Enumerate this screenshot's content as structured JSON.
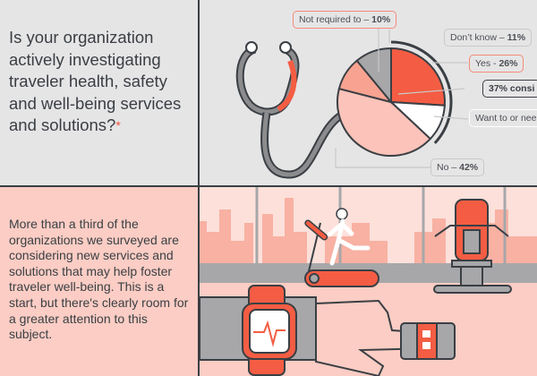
{
  "question": {
    "text": "Is your organization actively investigating traveler health, safety and well-being services and solutions?",
    "asterisk": "*"
  },
  "body_text": "More than a third of the organizations we surveyed are considering new services and solutions that may help foster traveler well-being. This is a start, but there's clearly room for a greater attention to this subject.",
  "chart_data": {
    "type": "pie",
    "title": "Is your organization actively investigating traveler health, safety and well-being services and solutions?",
    "slices": [
      {
        "label": "Yes",
        "value": 26,
        "display": "Yes - ",
        "value_text": "26%",
        "color": "#f45d43"
      },
      {
        "label": "Want to or need",
        "value": 11,
        "display": "Want to or nee",
        "value_text": "",
        "color": "#ffffff"
      },
      {
        "label": "No",
        "value": 42,
        "display": "No – ",
        "value_text": "42%",
        "color": "#fbc3b9"
      },
      {
        "label": "Not required to",
        "value": 10,
        "display": "Not required to – ",
        "value_text": "10%",
        "color": "#f8a391"
      },
      {
        "label": "Don't know",
        "value": 11,
        "display": "Don’t know – ",
        "value_text": "11%",
        "color": "#a7a7a9"
      }
    ],
    "group_annotation": {
      "text": "37% consi",
      "covers": [
        "Yes",
        "Want to or need"
      ],
      "value": 37
    }
  },
  "colors": {
    "accent": "#f45d43",
    "dark": "#3a3f44",
    "pink": "#fbcdc4"
  }
}
